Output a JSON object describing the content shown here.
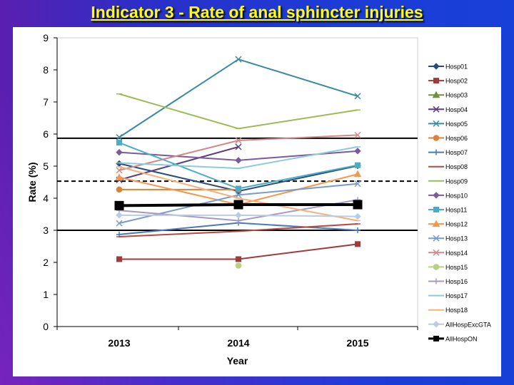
{
  "title": "Indicator 3 - Rate of anal sphincter injuries",
  "chart_data": {
    "type": "line",
    "xlabel": "Year",
    "ylabel": "Rate (%)",
    "categories": [
      "2013",
      "2014",
      "2015"
    ],
    "ylim": [
      0,
      9
    ],
    "yticks": [
      "0",
      "1",
      "2",
      "3",
      "4",
      "5",
      "6",
      "7",
      "8",
      "9"
    ],
    "grid": false,
    "legend_position": "right",
    "reference_lines": [
      {
        "value": 5.87,
        "style": "solid"
      },
      {
        "value": 4.53,
        "style": "dashed"
      },
      {
        "value": 3.0,
        "style": "solid"
      }
    ],
    "series": [
      {
        "name": "Hosp01",
        "color": "#2b4d7a",
        "marker": "diamond",
        "values": [
          5.08,
          4.22,
          5.01
        ]
      },
      {
        "name": "Hosp02",
        "color": "#9e3b3b",
        "marker": "square",
        "values": [
          2.1,
          2.1,
          2.57
        ]
      },
      {
        "name": "Hosp03",
        "color": "#72913a",
        "marker": "triangle",
        "values": [
          null,
          null,
          null
        ]
      },
      {
        "name": "Hosp04",
        "color": "#5c3f82",
        "marker": "x",
        "values": [
          4.57,
          5.6,
          null
        ]
      },
      {
        "name": "Hosp05",
        "color": "#3a8aa0",
        "marker": "x",
        "values": [
          5.9,
          8.33,
          7.18
        ]
      },
      {
        "name": "Hosp06",
        "color": "#d9823a",
        "marker": "circle",
        "values": [
          4.27,
          4.27,
          null
        ]
      },
      {
        "name": "Hosp07",
        "color": "#4a7ab8",
        "marker": "plus",
        "values": [
          2.87,
          3.23,
          3.0
        ]
      },
      {
        "name": "Hosp08",
        "color": "#b44a46",
        "marker": "dash",
        "values": [
          2.8,
          2.97,
          3.2
        ]
      },
      {
        "name": "Hosp09",
        "color": "#9cbb58",
        "marker": "dash",
        "values": [
          7.25,
          6.17,
          6.75
        ]
      },
      {
        "name": "Hosp10",
        "color": "#7a5b9c",
        "marker": "diamond",
        "values": [
          5.43,
          5.18,
          5.47
        ]
      },
      {
        "name": "Hosp11",
        "color": "#4bacc6",
        "marker": "square",
        "values": [
          5.73,
          4.3,
          5.03
        ]
      },
      {
        "name": "Hosp12",
        "color": "#f09a50",
        "marker": "triangle",
        "values": [
          4.65,
          3.8,
          4.75
        ]
      },
      {
        "name": "Hosp13",
        "color": "#7b9cc8",
        "marker": "x",
        "values": [
          3.22,
          4.1,
          4.45
        ]
      },
      {
        "name": "Hosp14",
        "color": "#d08a88",
        "marker": "x",
        "values": [
          4.87,
          5.8,
          5.97
        ]
      },
      {
        "name": "Hosp15",
        "color": "#b7d27e",
        "marker": "circle",
        "values": [
          null,
          1.9,
          null
        ]
      },
      {
        "name": "Hosp16",
        "color": "#a898c4",
        "marker": "plus",
        "values": [
          3.62,
          3.3,
          3.95
        ]
      },
      {
        "name": "Hosp17",
        "color": "#8ccbd8",
        "marker": "dash",
        "values": [
          5.1,
          4.93,
          5.6
        ]
      },
      {
        "name": "Hosp18",
        "color": "#f5b07c",
        "marker": "dash",
        "values": [
          4.98,
          4.0,
          3.3
        ]
      },
      {
        "name": "AllHospExcGTA",
        "color": "#b8cce4",
        "marker": "diamond",
        "values": [
          3.47,
          3.47,
          3.43
        ]
      },
      {
        "name": "AllHospON",
        "color": "#000000",
        "marker": "bigsquare",
        "values": [
          3.77,
          3.8,
          3.8
        ]
      }
    ]
  }
}
